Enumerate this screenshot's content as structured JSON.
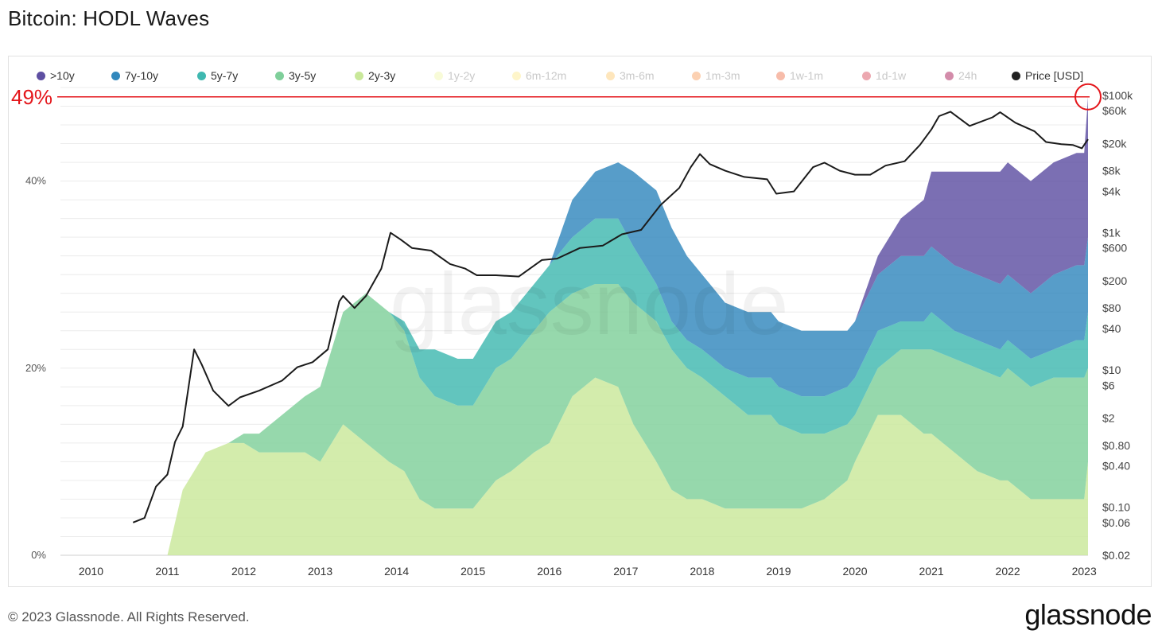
{
  "header": {
    "title": "Bitcoin: HODL Waves"
  },
  "footer": {
    "copyright": "© 2023 Glassnode. All Rights Reserved.",
    "logo": "glassnode"
  },
  "watermark": "glassnode",
  "legend": [
    {
      "label": ">10y",
      "color": "#5e4fa2",
      "active": true
    },
    {
      "label": "7y-10y",
      "color": "#3288bd",
      "active": true
    },
    {
      "label": "5y-7y",
      "color": "#3fb8b0",
      "active": true
    },
    {
      "label": "3y-5y",
      "color": "#7fcf9a",
      "active": true
    },
    {
      "label": "2y-3y",
      "color": "#c9e89a",
      "active": true
    },
    {
      "label": "1y-2y",
      "color": "#f0f7a8",
      "active": false
    },
    {
      "label": "6m-12m",
      "color": "#fde98a",
      "active": false
    },
    {
      "label": "3m-6m",
      "color": "#fdc76a",
      "active": false
    },
    {
      "label": "1m-3m",
      "color": "#f99a55",
      "active": false
    },
    {
      "label": "1w-1m",
      "color": "#ee6a42",
      "active": false
    },
    {
      "label": "1d-1w",
      "color": "#d53e4f",
      "active": false
    },
    {
      "label": "24h",
      "color": "#9e0142",
      "active": false
    },
    {
      "label": "Price [USD]",
      "color": "#222222",
      "active": true
    }
  ],
  "annotation": {
    "label": "49%",
    "value": 49,
    "color": "#e4161b"
  },
  "chart_data": {
    "type": "area",
    "stacked": true,
    "x_ticks": [
      "2010",
      "2011",
      "2012",
      "2013",
      "2014",
      "2015",
      "2016",
      "2017",
      "2018",
      "2019",
      "2020",
      "2021",
      "2022",
      "2023"
    ],
    "y_left": {
      "ticks": [
        "0%",
        "20%",
        "40%"
      ],
      "tick_values": [
        0,
        20,
        40
      ],
      "range": [
        0,
        50
      ],
      "unit": "%"
    },
    "y_right": {
      "scale": "log",
      "ticks": [
        "$100k",
        "$60k",
        "$20k",
        "$8k",
        "$4k",
        "$1k",
        "$600",
        "$200",
        "$80",
        "$40",
        "$10",
        "$6",
        "$2",
        "$0.80",
        "$0.40",
        "$0.10",
        "$0.06",
        "$0.02"
      ],
      "tick_values": [
        100000,
        60000,
        20000,
        8000,
        4000,
        1000,
        600,
        200,
        80,
        40,
        10,
        6,
        2,
        0.8,
        0.4,
        0.1,
        0.06,
        0.02
      ],
      "range": [
        0.02,
        100000
      ]
    },
    "x": [
      2010.5,
      2011.0,
      2011.2,
      2011.5,
      2011.8,
      2012.0,
      2012.2,
      2012.5,
      2012.8,
      2013.0,
      2013.3,
      2013.6,
      2013.9,
      2014.1,
      2014.3,
      2014.5,
      2014.8,
      2015.0,
      2015.3,
      2015.5,
      2015.8,
      2016.0,
      2016.3,
      2016.6,
      2016.9,
      2017.1,
      2017.4,
      2017.6,
      2017.8,
      2018.0,
      2018.3,
      2018.6,
      2018.9,
      2019.0,
      2019.3,
      2019.6,
      2019.9,
      2020.0,
      2020.3,
      2020.6,
      2020.9,
      2021.0,
      2021.3,
      2021.6,
      2021.9,
      2022.0,
      2022.3,
      2022.6,
      2022.9,
      2023.0,
      2023.05
    ],
    "series": [
      {
        "name": "2y-3y",
        "values": [
          0,
          0,
          7,
          11,
          12,
          12,
          11,
          11,
          11,
          10,
          14,
          12,
          10,
          9,
          6,
          5,
          5,
          5,
          8,
          9,
          11,
          12,
          17,
          19,
          18,
          14,
          10,
          7,
          6,
          6,
          5,
          5,
          5,
          5,
          5,
          6,
          8,
          10,
          15,
          15,
          13,
          13,
          11,
          9,
          8,
          8,
          6,
          6,
          6,
          6,
          10
        ]
      },
      {
        "name": "3y-5y",
        "values": [
          0,
          0,
          0,
          0,
          0,
          1,
          2,
          4,
          6,
          8,
          12,
          16,
          16,
          15,
          13,
          12,
          11,
          11,
          12,
          12,
          13,
          14,
          11,
          10,
          11,
          13,
          15,
          15,
          14,
          13,
          12,
          10,
          10,
          9,
          8,
          7,
          6,
          5,
          5,
          7,
          9,
          9,
          10,
          11,
          11,
          12,
          12,
          13,
          13,
          13,
          10
        ]
      },
      {
        "name": "5y-7y",
        "values": [
          0,
          0,
          0,
          0,
          0,
          0,
          0,
          0,
          0,
          0,
          0,
          0,
          0,
          1,
          3,
          5,
          5,
          5,
          5,
          5,
          5,
          5,
          6,
          7,
          7,
          6,
          4,
          3,
          3,
          3,
          3,
          4,
          4,
          4,
          4,
          4,
          4,
          4,
          4,
          3,
          3,
          4,
          3,
          3,
          3,
          3,
          3,
          3,
          4,
          4,
          6
        ]
      },
      {
        "name": "7y-10y",
        "values": [
          0,
          0,
          0,
          0,
          0,
          0,
          0,
          0,
          0,
          0,
          0,
          0,
          0,
          0,
          0,
          0,
          0,
          0,
          0,
          0,
          0,
          0,
          4,
          5,
          6,
          8,
          10,
          10,
          9,
          8,
          7,
          7,
          7,
          7,
          7,
          7,
          6,
          6,
          6,
          7,
          7,
          7,
          7,
          7,
          7,
          7,
          7,
          8,
          8,
          8,
          8
        ]
      },
      {
        "name": ">10y",
        "values": [
          0,
          0,
          0,
          0,
          0,
          0,
          0,
          0,
          0,
          0,
          0,
          0,
          0,
          0,
          0,
          0,
          0,
          0,
          0,
          0,
          0,
          0,
          0,
          0,
          0,
          0,
          0,
          0,
          0,
          0,
          0,
          0,
          0,
          0,
          0,
          0,
          0,
          0,
          2,
          4,
          6,
          8,
          10,
          11,
          12,
          12,
          12,
          12,
          12,
          12,
          15
        ]
      }
    ],
    "price": {
      "name": "Price [USD]",
      "x": [
        2010.55,
        2010.7,
        2010.85,
        2011.0,
        2011.1,
        2011.2,
        2011.35,
        2011.45,
        2011.6,
        2011.8,
        2011.95,
        2012.2,
        2012.5,
        2012.7,
        2012.9,
        2013.1,
        2013.25,
        2013.3,
        2013.45,
        2013.6,
        2013.8,
        2013.92,
        2014.05,
        2014.2,
        2014.45,
        2014.7,
        2014.9,
        2015.05,
        2015.3,
        2015.6,
        2015.9,
        2016.1,
        2016.4,
        2016.7,
        2016.95,
        2017.2,
        2017.45,
        2017.7,
        2017.85,
        2017.97,
        2018.1,
        2018.3,
        2018.55,
        2018.85,
        2018.97,
        2019.2,
        2019.45,
        2019.6,
        2019.8,
        2020.0,
        2020.2,
        2020.4,
        2020.65,
        2020.85,
        2021.0,
        2021.1,
        2021.25,
        2021.5,
        2021.8,
        2021.9,
        2022.1,
        2022.35,
        2022.5,
        2022.7,
        2022.85,
        2022.97,
        2023.05
      ],
      "values": [
        0.06,
        0.07,
        0.2,
        0.3,
        0.9,
        1.5,
        20,
        12,
        5,
        3,
        4,
        5,
        7,
        11,
        13,
        20,
        100,
        120,
        80,
        120,
        300,
        1000,
        800,
        600,
        550,
        350,
        300,
        240,
        240,
        230,
        400,
        420,
        600,
        650,
        950,
        1100,
        2500,
        4500,
        9000,
        14000,
        10000,
        8000,
        6500,
        6000,
        3700,
        4000,
        9000,
        10500,
        8000,
        7000,
        7000,
        9500,
        11000,
        19000,
        32000,
        50000,
        58000,
        36000,
        48000,
        57000,
        40000,
        30000,
        21000,
        19500,
        19000,
        17000,
        23000
      ]
    }
  }
}
